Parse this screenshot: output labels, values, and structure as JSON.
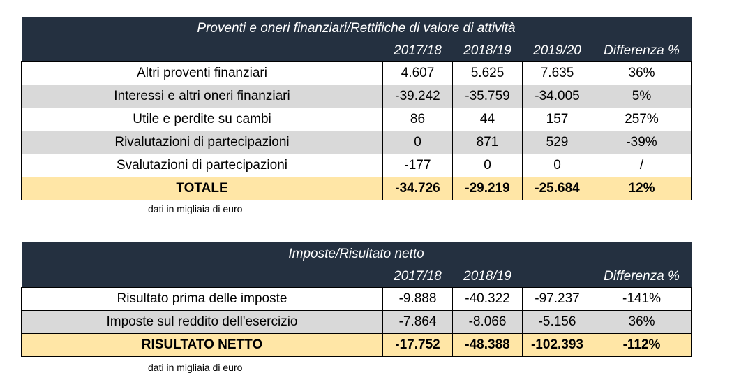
{
  "table1": {
    "title": "Proventi e oneri finanziari/Rettifiche di valore di attività",
    "headers": [
      "2017/18",
      "2018/19",
      "2019/20",
      "Differenza %"
    ],
    "rows": [
      {
        "label": "Altri proventi finanziari",
        "values": [
          "4.607",
          "5.625",
          "7.635",
          "36%"
        ]
      },
      {
        "label": "Interessi e altri oneri finanziari",
        "values": [
          "-39.242",
          "-35.759",
          "-34.005",
          "5%"
        ]
      },
      {
        "label": "Utile e perdite su cambi",
        "values": [
          "86",
          "44",
          "157",
          "257%"
        ]
      },
      {
        "label": "Rivalutazioni di partecipazioni",
        "values": [
          "0",
          "871",
          "529",
          "-39%"
        ]
      },
      {
        "label": "Svalutazioni di partecipazioni",
        "values": [
          "-177",
          "0",
          "0",
          "/"
        ]
      }
    ],
    "total": {
      "label": "TOTALE",
      "values": [
        "-34.726",
        "-29.219",
        "-25.684",
        "12%"
      ]
    },
    "note": "dati in migliaia di euro"
  },
  "table2": {
    "title": "Imposte/Risultato netto",
    "headers": [
      "2017/18",
      "2018/19",
      "",
      "Differenza %"
    ],
    "rows": [
      {
        "label": "Risultato prima delle imposte",
        "values": [
          "-9.888",
          "-40.322",
          "-97.237",
          "-141%"
        ]
      },
      {
        "label": "Imposte sul reddito dell'esercizio",
        "values": [
          "-7.864",
          "-8.066",
          "-5.156",
          "36%"
        ]
      }
    ],
    "total": {
      "label": "RISULTATO NETTO",
      "values": [
        "-17.752",
        "-48.388",
        "-102.393",
        "-112%"
      ]
    },
    "note": "dati in migliaia di euro"
  }
}
